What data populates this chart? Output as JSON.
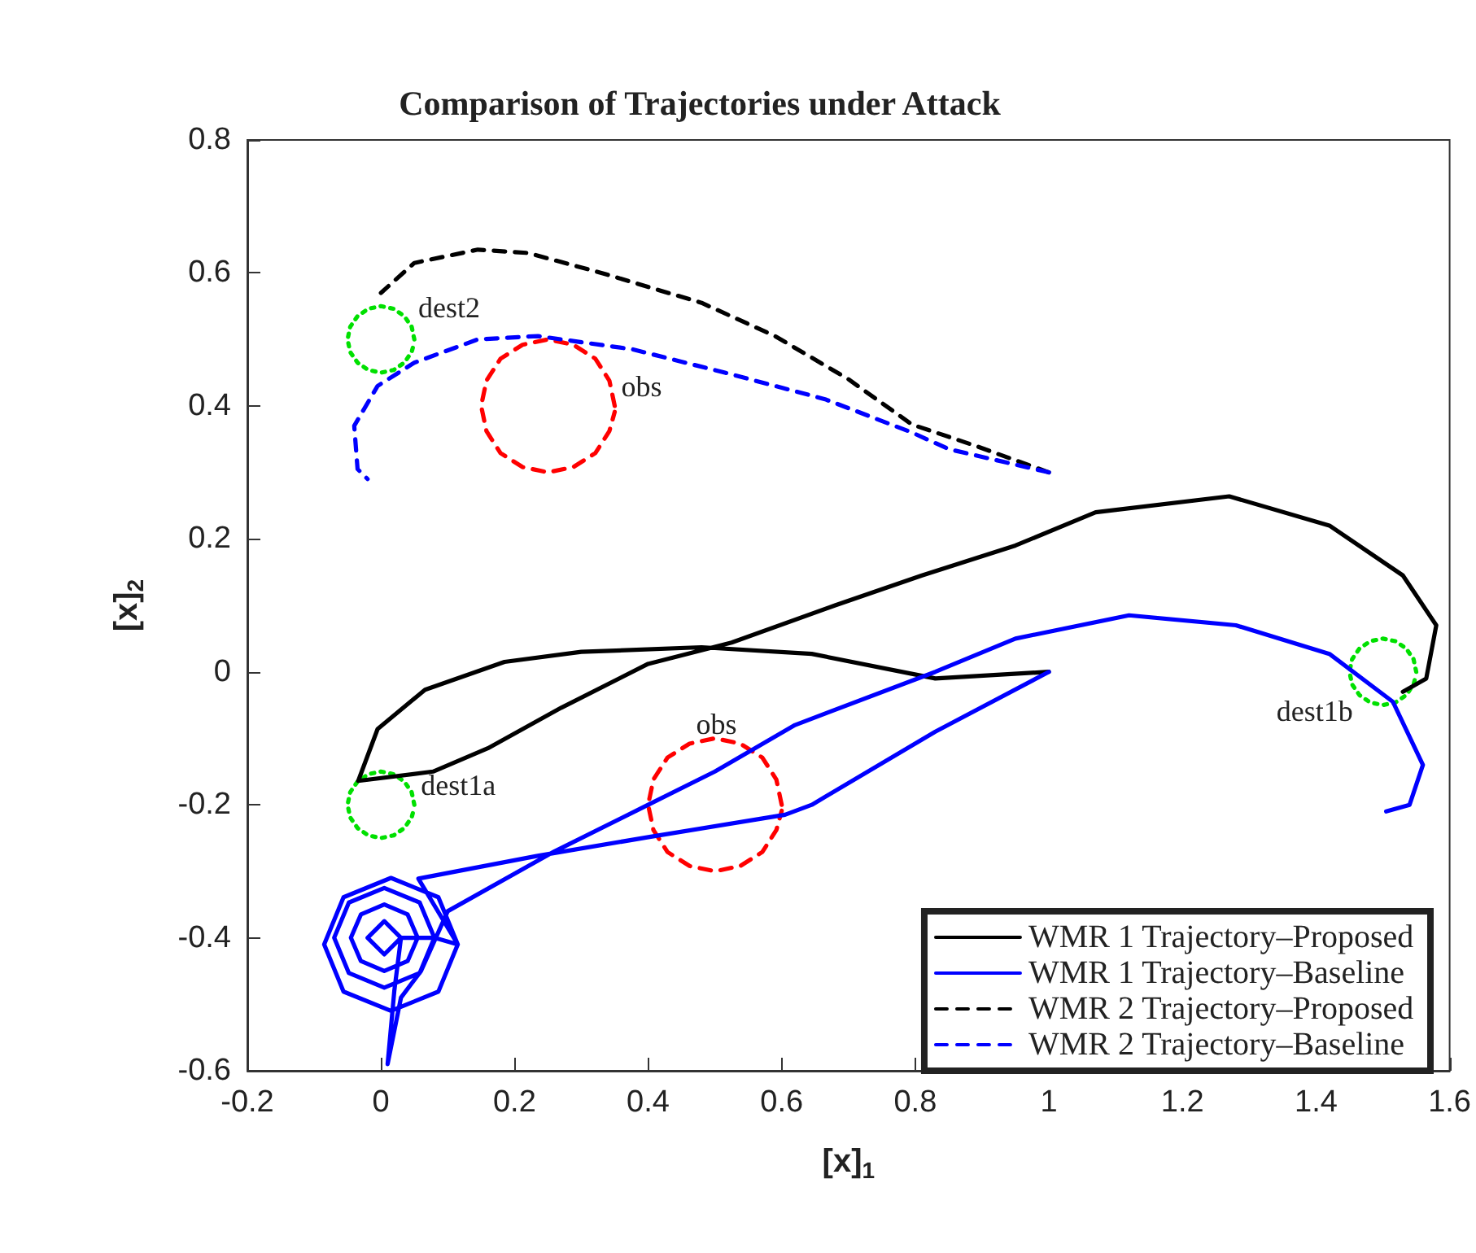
{
  "chart_data": {
    "type": "line",
    "title": "Comparison of Trajectories under Attack",
    "xlabel": "[x]$_{1}$",
    "ylabel": "[x]$_{2}$",
    "xlim": [
      -0.2,
      1.6
    ],
    "xticks": [
      -0.2,
      0,
      0.2,
      0.4,
      0.6,
      0.8,
      1,
      1.2,
      1.4,
      1.6
    ],
    "ylim": [
      -0.6,
      0.8
    ],
    "yticks": [
      -0.6,
      -0.4,
      -0.2,
      0,
      0.2,
      0.4,
      0.6,
      0.8
    ],
    "grid": false,
    "legend": "bottom right",
    "marker": "none",
    "series": [
      {
        "name": "WMR 1 Trajectory–Proposed",
        "color": "#000000",
        "line_style": "solid",
        "x": [
          1,
          0.83,
          0.645,
          0.48,
          0.3,
          0.185,
          0.066,
          -0.005,
          -0.034,
          0.078,
          0.16,
          0.27,
          0.4,
          0.525,
          0.68,
          0.81,
          0.95,
          1.07,
          1.27,
          1.42,
          1.53,
          1.58,
          1.565,
          1.53
        ],
        "values": [
          0,
          -0.01,
          0.027,
          0.037,
          0.03,
          0.015,
          -0.027,
          -0.086,
          -0.164,
          -0.15,
          -0.115,
          -0.054,
          0.012,
          0.044,
          0.1,
          0.145,
          0.19,
          0.24,
          0.264,
          0.22,
          0.145,
          0.07,
          -0.01,
          -0.03
        ]
      },
      {
        "name": "WMR 1 Trajectory–Baseline",
        "color": "#0000ff",
        "line_style": "solid",
        "x": [
          1,
          0.83,
          0.645,
          0.605,
          0.404,
          0.233,
          0.056,
          0.115,
          0.086,
          0.015,
          -0.056,
          -0.085,
          -0.056,
          0.015,
          0.086,
          0.115,
          0.08,
          0.058,
          0.005,
          -0.048,
          -0.07,
          -0.048,
          0.005,
          0.058,
          0.08,
          0.055,
          0.04,
          0.005,
          -0.03,
          -0.045,
          -0.03,
          0.005,
          0.04,
          0.055,
          0.03,
          0.005,
          -0.02,
          0.005,
          0.03,
          0.02,
          0.01,
          0.03,
          0.06,
          0.1,
          0.26,
          0.4,
          0.5,
          0.62,
          0.83,
          0.95,
          1.12,
          1.28,
          1.42,
          1.515,
          1.56,
          1.54,
          1.505
        ],
        "values": [
          0,
          -0.09,
          -0.2,
          -0.215,
          -0.248,
          -0.277,
          -0.311,
          -0.41,
          -0.339,
          -0.31,
          -0.339,
          -0.41,
          -0.481,
          -0.51,
          -0.481,
          -0.41,
          -0.4,
          -0.347,
          -0.325,
          -0.347,
          -0.4,
          -0.453,
          -0.475,
          -0.453,
          -0.4,
          -0.4,
          -0.365,
          -0.35,
          -0.365,
          -0.4,
          -0.435,
          -0.45,
          -0.435,
          -0.4,
          -0.4,
          -0.375,
          -0.4,
          -0.425,
          -0.4,
          -0.48,
          -0.59,
          -0.49,
          -0.45,
          -0.36,
          -0.27,
          -0.2,
          -0.15,
          -0.08,
          0,
          0.05,
          0.085,
          0.07,
          0.027,
          -0.045,
          -0.14,
          -0.2,
          -0.21
        ]
      },
      {
        "name": "WMR 2 Trajectory–Proposed",
        "color": "#000000",
        "line_style": "dashed",
        "x": [
          1,
          0.89,
          0.795,
          0.7,
          0.59,
          0.48,
          0.33,
          0.22,
          0.145,
          0.05,
          0
        ],
        "values": [
          0.3,
          0.34,
          0.372,
          0.44,
          0.505,
          0.555,
          0.6,
          0.63,
          0.635,
          0.615,
          0.57
        ]
      },
      {
        "name": "WMR 2 Trajectory–Baseline",
        "color": "#0000ff",
        "line_style": "dashed",
        "x": [
          1,
          0.85,
          0.795,
          0.665,
          0.515,
          0.377,
          0.235,
          0.145,
          0.05,
          -0.005,
          -0.04,
          -0.035,
          -0.02
        ],
        "values": [
          0.3,
          0.335,
          0.36,
          0.41,
          0.45,
          0.485,
          0.505,
          0.5,
          0.465,
          0.43,
          0.37,
          0.305,
          0.29
        ]
      },
      {
        "color": "#ff0000",
        "line_style": "dashed",
        "x": [
          0.35,
          0.342,
          0.321,
          0.288,
          0.25,
          0.212,
          0.179,
          0.158,
          0.15,
          0.158,
          0.179,
          0.212,
          0.25,
          0.288,
          0.321,
          0.342,
          0.35
        ],
        "values": [
          0.4,
          0.438,
          0.471,
          0.492,
          0.5,
          0.492,
          0.471,
          0.438,
          0.4,
          0.362,
          0.329,
          0.308,
          0.3,
          0.308,
          0.329,
          0.362,
          0.391
        ]
      },
      {
        "color": "#ff0000",
        "line_style": "dashed",
        "x": [
          0.6,
          0.592,
          0.571,
          0.538,
          0.5,
          0.462,
          0.429,
          0.408,
          0.4,
          0.408,
          0.429,
          0.462,
          0.5,
          0.538,
          0.571,
          0.592,
          0.6
        ],
        "values": [
          -0.2,
          -0.162,
          -0.129,
          -0.108,
          -0.1,
          -0.108,
          -0.129,
          -0.162,
          -0.2,
          -0.238,
          -0.271,
          -0.292,
          -0.3,
          -0.292,
          -0.271,
          -0.238,
          -0.209
        ]
      },
      {
        "color": "#00e000",
        "line_style": "dotted",
        "x": [
          0.05,
          0.046,
          0.035,
          0.019,
          0,
          -0.019,
          -0.035,
          -0.046,
          -0.05,
          -0.046,
          -0.035,
          -0.019,
          0,
          0.019,
          0.035,
          0.046,
          0.05
        ],
        "values": [
          0.5,
          0.519,
          0.535,
          0.546,
          0.55,
          0.546,
          0.535,
          0.519,
          0.5,
          0.481,
          0.465,
          0.454,
          0.45,
          0.454,
          0.465,
          0.481,
          0.496
        ]
      },
      {
        "color": "#00e000",
        "line_style": "dotted",
        "x": [
          0.05,
          0.046,
          0.035,
          0.019,
          0,
          -0.019,
          -0.035,
          -0.046,
          -0.05,
          -0.046,
          -0.035,
          -0.019,
          0,
          0.019,
          0.035,
          0.046,
          0.05
        ],
        "values": [
          -0.2,
          -0.181,
          -0.165,
          -0.154,
          -0.15,
          -0.154,
          -0.165,
          -0.181,
          -0.2,
          -0.219,
          -0.235,
          -0.246,
          -0.25,
          -0.246,
          -0.235,
          -0.219,
          -0.204
        ]
      },
      {
        "color": "#00e000",
        "line_style": "dotted",
        "x": [
          1.55,
          1.546,
          1.535,
          1.519,
          1.5,
          1.481,
          1.465,
          1.454,
          1.45,
          1.454,
          1.465,
          1.481,
          1.5,
          1.519,
          1.535,
          1.546,
          1.55
        ],
        "values": [
          0,
          0.019,
          0.035,
          0.046,
          0.05,
          0.046,
          0.035,
          0.019,
          0,
          -0.019,
          -0.035,
          -0.046,
          -0.05,
          -0.046,
          -0.035,
          -0.019,
          -0.004
        ]
      }
    ],
    "annotations": [
      {
        "text": "dest2",
        "x": 0.046,
        "y": 0.519
      },
      {
        "text": "obs",
        "x": 0.35,
        "y": 0.4
      },
      {
        "text": "dest1a",
        "x": 0.05,
        "y": -0.2
      },
      {
        "text": "obs",
        "x": 0.462,
        "y": -0.108
      },
      {
        "text": "dest1b",
        "x": 1.465,
        "y": -0.035
      }
    ]
  }
}
